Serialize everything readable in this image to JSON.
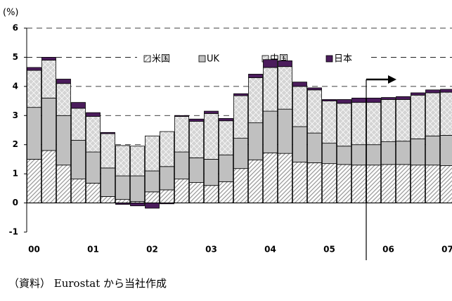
{
  "chart_data": {
    "type": "stacked_bar",
    "y_label": "(%)",
    "source": "（資料） Eurostat から当社作成",
    "categories": [
      "00",
      null,
      null,
      null,
      "01",
      null,
      null,
      null,
      "02",
      null,
      null,
      null,
      "03",
      null,
      null,
      null,
      "04",
      null,
      null,
      null,
      "05",
      null,
      null,
      null,
      "06",
      null,
      null,
      null,
      "07"
    ],
    "series": [
      {
        "name": "米国",
        "color": "#9a9a9a",
        "pattern": "hatch",
        "values": [
          1.5,
          1.8,
          1.3,
          0.82,
          0.68,
          0.22,
          0.12,
          0.05,
          0.38,
          0.45,
          0.82,
          0.7,
          0.6,
          0.73,
          1.18,
          1.48,
          1.72,
          1.7,
          1.4,
          1.38,
          1.35,
          1.32,
          1.3,
          1.3,
          1.32,
          1.32,
          1.3,
          1.3,
          1.28
        ]
      },
      {
        "name": "UK",
        "color": "#c0c0c0",
        "pattern": "solid",
        "values": [
          1.78,
          1.8,
          1.7,
          1.33,
          1.07,
          0.98,
          0.81,
          0.88,
          0.72,
          0.8,
          0.93,
          0.85,
          0.9,
          0.92,
          1.04,
          1.27,
          1.43,
          1.52,
          1.22,
          1.02,
          0.7,
          0.63,
          0.7,
          0.7,
          0.78,
          0.8,
          0.9,
          1.0,
          1.04
        ]
      },
      {
        "name": "中国",
        "color": "#d4d4d4",
        "pattern": "dots",
        "values": [
          1.27,
          1.3,
          1.1,
          1.1,
          1.22,
          1.18,
          1.04,
          1.02,
          1.2,
          1.2,
          1.22,
          1.25,
          1.57,
          1.17,
          1.46,
          1.55,
          1.5,
          1.46,
          1.38,
          1.48,
          1.45,
          1.47,
          1.45,
          1.45,
          1.45,
          1.43,
          1.5,
          1.48,
          1.48
        ]
      },
      {
        "name": "日本",
        "color": "#4b1c5c",
        "pattern": "solid",
        "values": [
          0.1,
          0.1,
          0.15,
          0.2,
          0.13,
          0.04,
          -0.05,
          -0.1,
          -0.18,
          -0.03,
          0.03,
          0.08,
          0.08,
          0.08,
          0.07,
          0.12,
          0.27,
          0.2,
          0.15,
          0.07,
          0.05,
          0.13,
          0.15,
          0.15,
          0.07,
          0.1,
          0.08,
          0.1,
          0.1
        ]
      }
    ],
    "ylim": [
      -1,
      6
    ],
    "yticks": [
      -1,
      0,
      1,
      2,
      3,
      4,
      5,
      6
    ],
    "grid": true
  }
}
